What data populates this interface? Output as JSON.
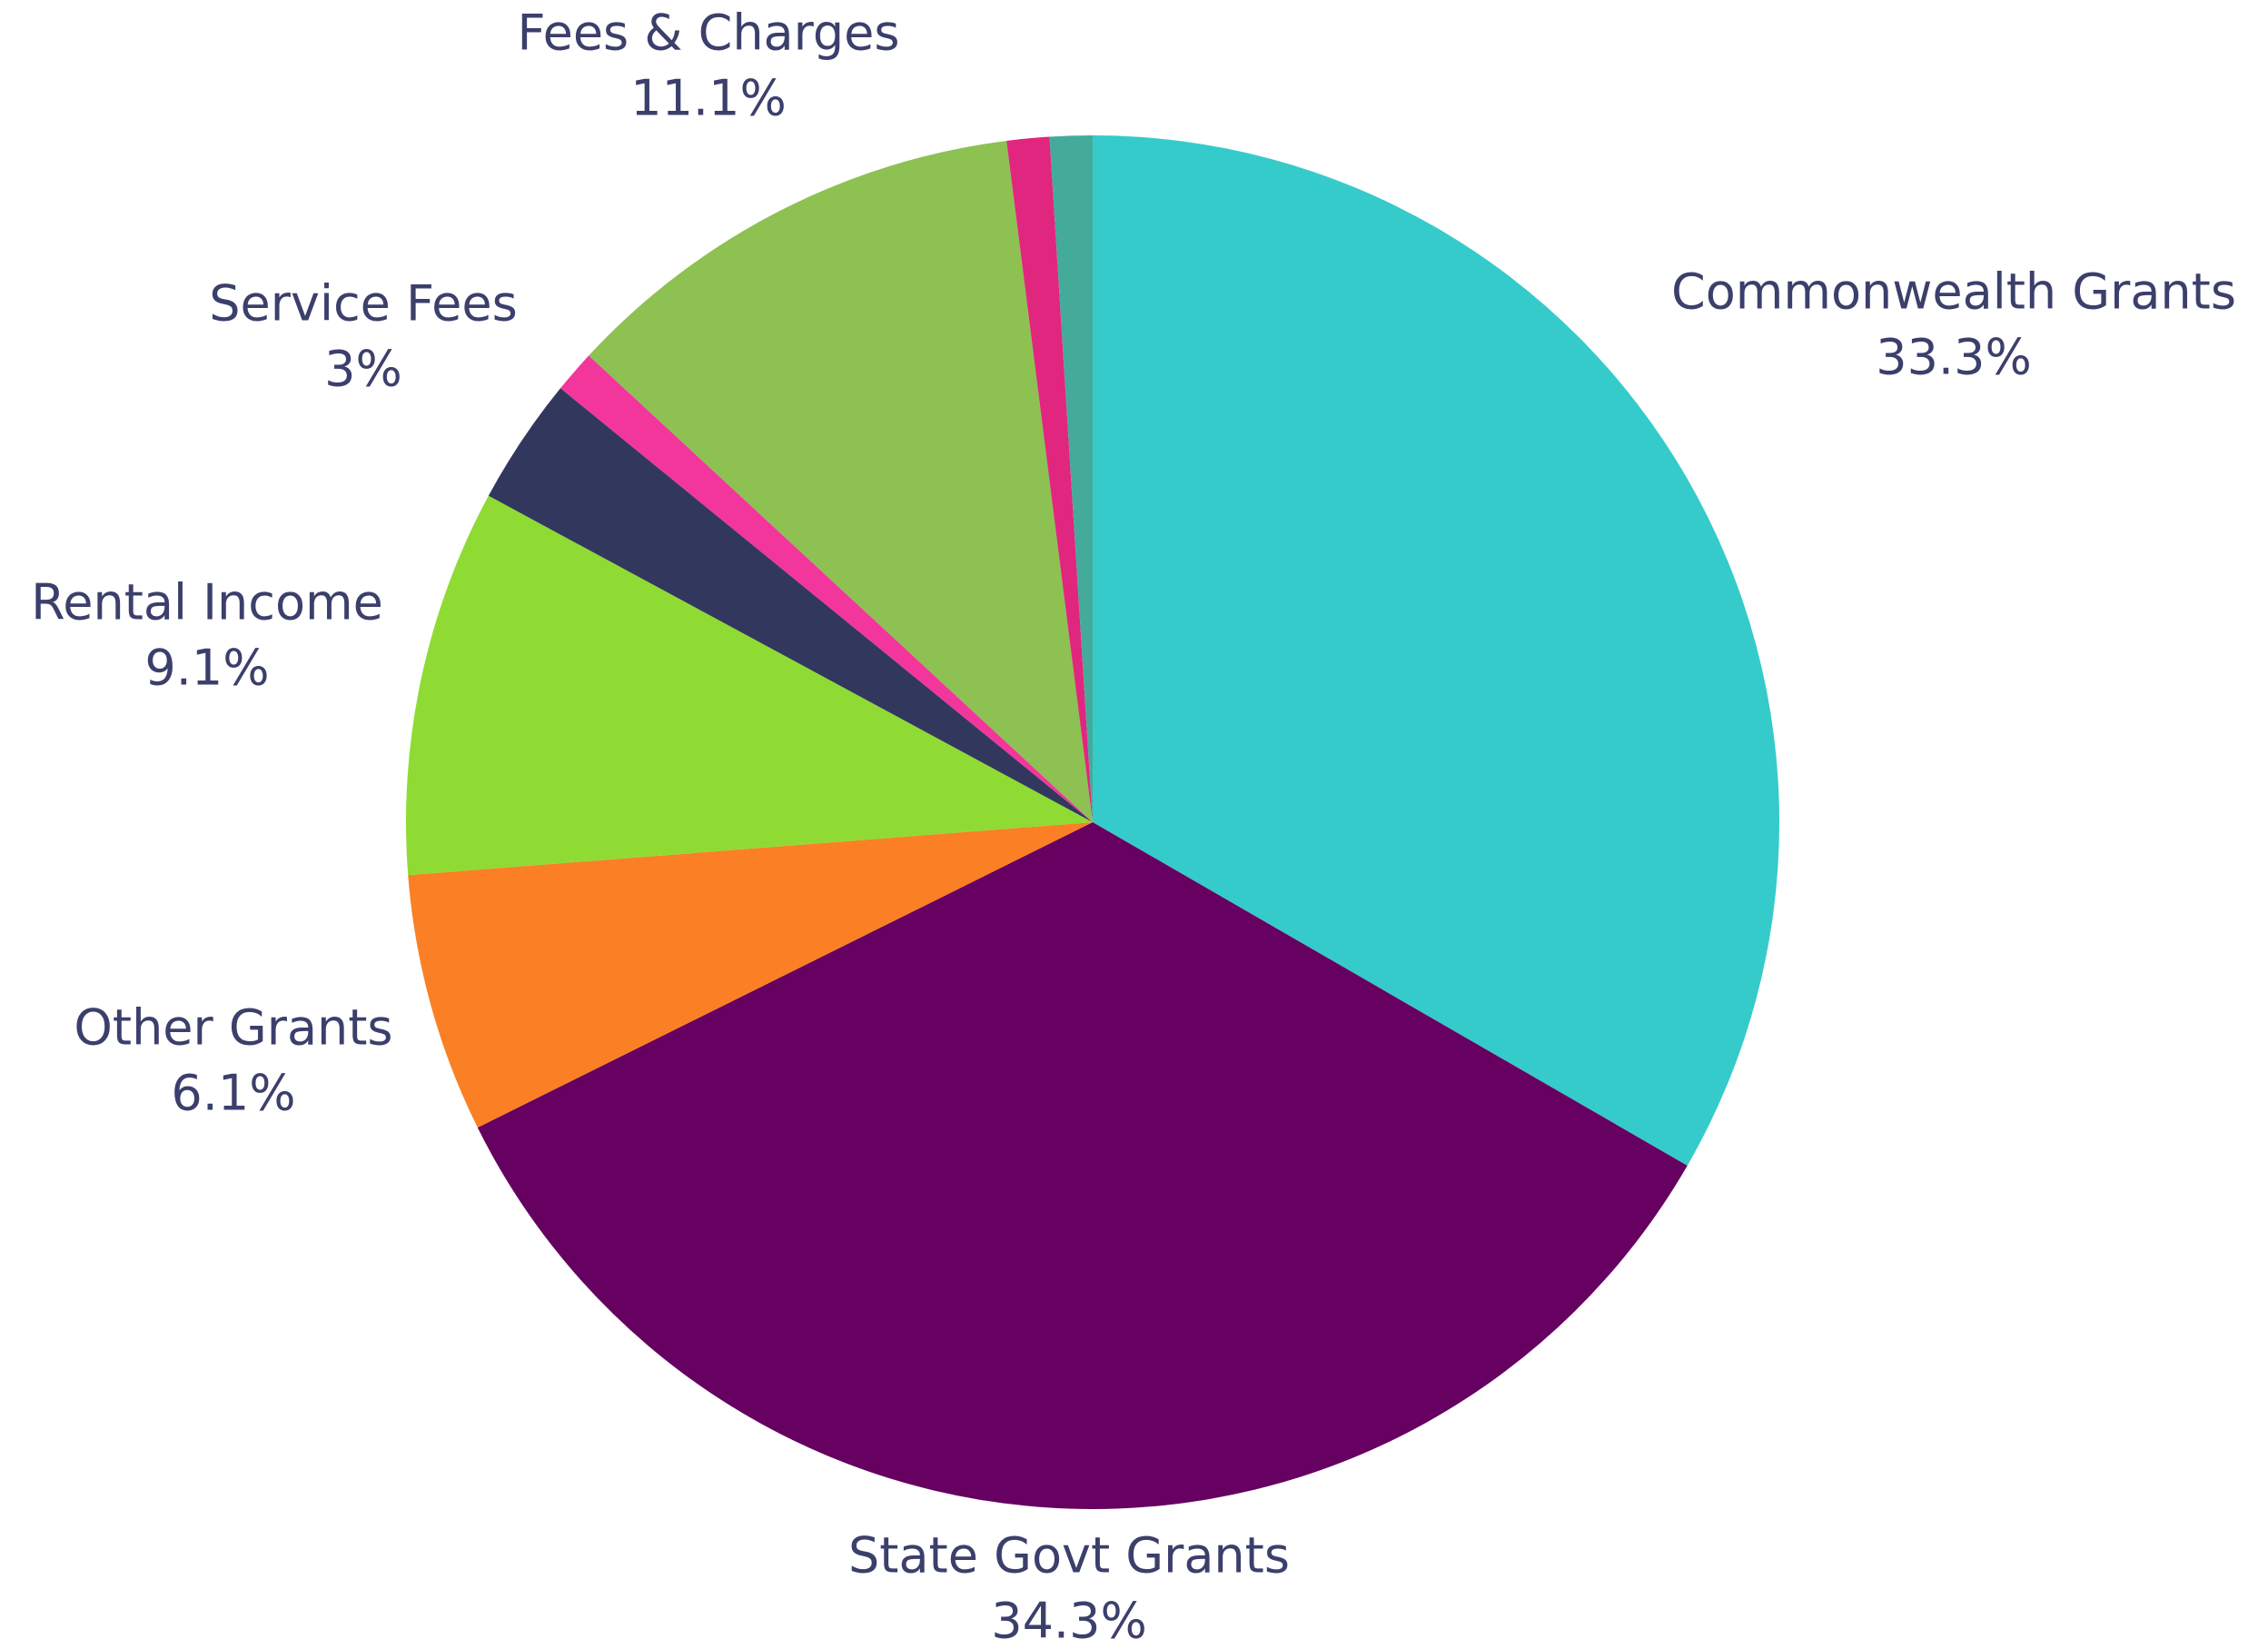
{
  "chart_data": {
    "type": "pie",
    "categories": [
      "Commonwealth Grants",
      "State Govt Grants",
      "Other Grants",
      "Rental Income",
      "Service Fees",
      null,
      "Fees & Charges",
      null,
      null
    ],
    "values": [
      33.3,
      34.3,
      6.1,
      9.1,
      3,
      1,
      11.1,
      1,
      1
    ],
    "value_labels": [
      "33.3%",
      "34.3%",
      "6.1%",
      "9.1%",
      "3%",
      null,
      "11.1%",
      null,
      null
    ],
    "colors": [
      "#35cbca",
      "#660061",
      "#fb7f24",
      "#8fdb33",
      "#32375e",
      "#f2369c",
      "#8dc152",
      "#e1267f",
      "#44ab9b"
    ]
  }
}
